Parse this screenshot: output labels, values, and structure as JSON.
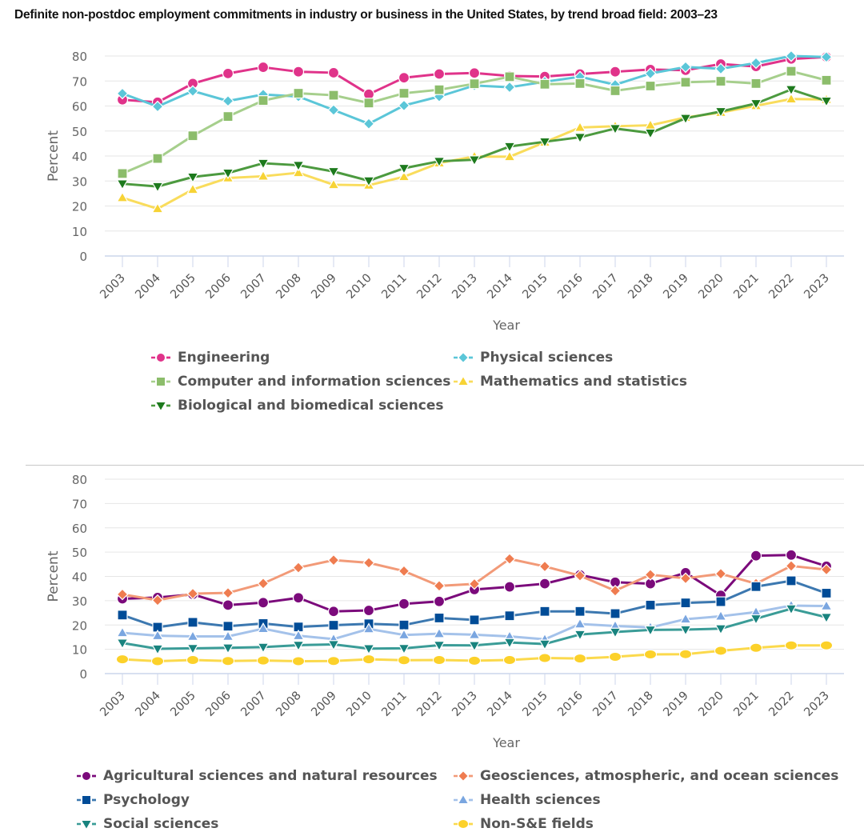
{
  "title": "Definite non-postdoc employment commitments in industry or business in the United States, by trend broad field: 2003–23",
  "chart_data": [
    {
      "type": "line",
      "title": "Definite non-postdoc employment commitments in industry or business in the United States, by trend broad field: 2003–23",
      "xlabel": "Year",
      "ylabel": "Percent",
      "ylim": [
        0,
        80
      ],
      "yticks": [
        0,
        10,
        20,
        30,
        40,
        50,
        60,
        70,
        80
      ],
      "grid": true,
      "legend_position": "bottom",
      "x": [
        "2003",
        "2004",
        "2005",
        "2006",
        "2007",
        "2008",
        "2009",
        "2010",
        "2011",
        "2012",
        "2013",
        "2014",
        "2015",
        "2016",
        "2017",
        "2018",
        "2019",
        "2020",
        "2021",
        "2022",
        "2023"
      ],
      "series": [
        {
          "name": "Engineering",
          "color": "#e0338a",
          "marker": "circle",
          "values": [
            62.5,
            61.5,
            69,
            73,
            75.5,
            73.7,
            73.3,
            64.7,
            71.3,
            72.8,
            73.2,
            72,
            71.8,
            72.8,
            73.7,
            74.6,
            74.3,
            76.8,
            75.8,
            78.8,
            79.6
          ]
        },
        {
          "name": "Physical sciences",
          "color": "#5bc6d8",
          "marker": "diamond",
          "values": [
            65,
            59.8,
            66,
            62,
            64.6,
            63.8,
            58.4,
            52.9,
            60.2,
            63.8,
            68.2,
            67.5,
            69.7,
            71.7,
            68.5,
            73,
            75.6,
            74.9,
            77.2,
            80,
            79.6
          ]
        },
        {
          "name": "Computer and information sciences",
          "color": "#8cbd6b",
          "line_color": "#a6cf8c",
          "marker": "square",
          "values": [
            33,
            39,
            48.1,
            55.8,
            62.2,
            65.1,
            64.3,
            61.2,
            65.1,
            66.5,
            68.9,
            71.7,
            68.7,
            69,
            66.1,
            68,
            69.5,
            69.9,
            69,
            73.9,
            70.3
          ]
        },
        {
          "name": "Mathematics and statistics",
          "color": "#f7d335",
          "line_color": "#f9dc5c",
          "marker": "triangle-up",
          "values": [
            23.3,
            18.9,
            26.6,
            31.2,
            31.9,
            33.3,
            28.5,
            28.3,
            31.7,
            37.2,
            39.8,
            39.7,
            45.5,
            51.4,
            51.9,
            52.3,
            55.4,
            57.4,
            60.1,
            62.8,
            62.6
          ]
        },
        {
          "name": "Biological and biomedical sciences",
          "color": "#1d7a1d",
          "line_color": "#4c9a3f",
          "marker": "triangle-down",
          "values": [
            28.9,
            27.8,
            31.6,
            33.2,
            37.1,
            36.3,
            33.8,
            30.1,
            35.1,
            37.9,
            38.5,
            43.8,
            45.7,
            47.5,
            51,
            49.2,
            55.1,
            57.8,
            61,
            66.6,
            62
          ]
        }
      ]
    },
    {
      "type": "line",
      "xlabel": "Year",
      "ylabel": "Percent",
      "ylim": [
        0,
        80
      ],
      "yticks": [
        0,
        10,
        20,
        30,
        40,
        50,
        60,
        70,
        80
      ],
      "grid": true,
      "legend_position": "bottom",
      "x": [
        "2003",
        "2004",
        "2005",
        "2006",
        "2007",
        "2008",
        "2009",
        "2010",
        "2011",
        "2012",
        "2013",
        "2014",
        "2015",
        "2016",
        "2017",
        "2018",
        "2019",
        "2020",
        "2021",
        "2022",
        "2023"
      ],
      "series": [
        {
          "name": "Agricultural sciences and natural resources",
          "color": "#7b0a7b",
          "marker": "circle",
          "values": [
            30.8,
            31.3,
            32.6,
            28.2,
            29.2,
            31.2,
            25.6,
            26,
            28.7,
            29.7,
            34.6,
            35.7,
            37,
            40.6,
            37.6,
            37,
            41.5,
            32.2,
            48.5,
            48.8,
            44.2
          ]
        },
        {
          "name": "Geosciences, atmospheric, and ocean sciences",
          "color": "#ef7c50",
          "line_color": "#f29a78",
          "marker": "diamond",
          "values": [
            32.6,
            30.2,
            32.9,
            33.2,
            37.1,
            43.6,
            46.7,
            45.6,
            42.2,
            36.1,
            36.9,
            47.2,
            44.1,
            40.3,
            34.1,
            40.7,
            39.2,
            41.1,
            37,
            44.3,
            42.8
          ]
        },
        {
          "name": "Psychology",
          "color": "#004c97",
          "line_color": "#3c78b0",
          "marker": "square",
          "values": [
            24.1,
            19.1,
            21.1,
            19.5,
            20.6,
            19.2,
            19.9,
            20.5,
            20,
            22.9,
            22.1,
            23.8,
            25.6,
            25.6,
            24.7,
            28.2,
            29.1,
            29.6,
            35.8,
            38.2,
            33.1
          ]
        },
        {
          "name": "Health sciences",
          "color": "#7aa6e0",
          "line_color": "#a4c2ea",
          "marker": "triangle-up",
          "values": [
            16.8,
            15.6,
            15.3,
            15.3,
            18.5,
            15.6,
            14.2,
            18.4,
            15.9,
            16.4,
            16,
            15.3,
            14.1,
            20.4,
            19.6,
            19,
            22.4,
            23.6,
            25.3,
            28,
            27.8
          ]
        },
        {
          "name": "Social sciences",
          "color": "#18837e",
          "line_color": "#3a9c97",
          "marker": "triangle-down",
          "values": [
            12.6,
            10.2,
            10.4,
            10.6,
            10.9,
            11.7,
            12,
            10.3,
            10.4,
            11.7,
            11.6,
            12.8,
            12.2,
            16.1,
            17.1,
            18,
            18.1,
            18.5,
            22.6,
            26.7,
            23.2
          ]
        },
        {
          "name": "Non-S&E fields",
          "color": "#fcd12a",
          "line_color": "#fbd94c",
          "marker": "circle",
          "values": [
            5.9,
            5.1,
            5.6,
            5.2,
            5.4,
            5.1,
            5.2,
            5.9,
            5.5,
            5.6,
            5.3,
            5.6,
            6.4,
            6.2,
            6.9,
            7.9,
            8,
            9.4,
            10.6,
            11.6,
            11.6
          ]
        }
      ]
    }
  ]
}
